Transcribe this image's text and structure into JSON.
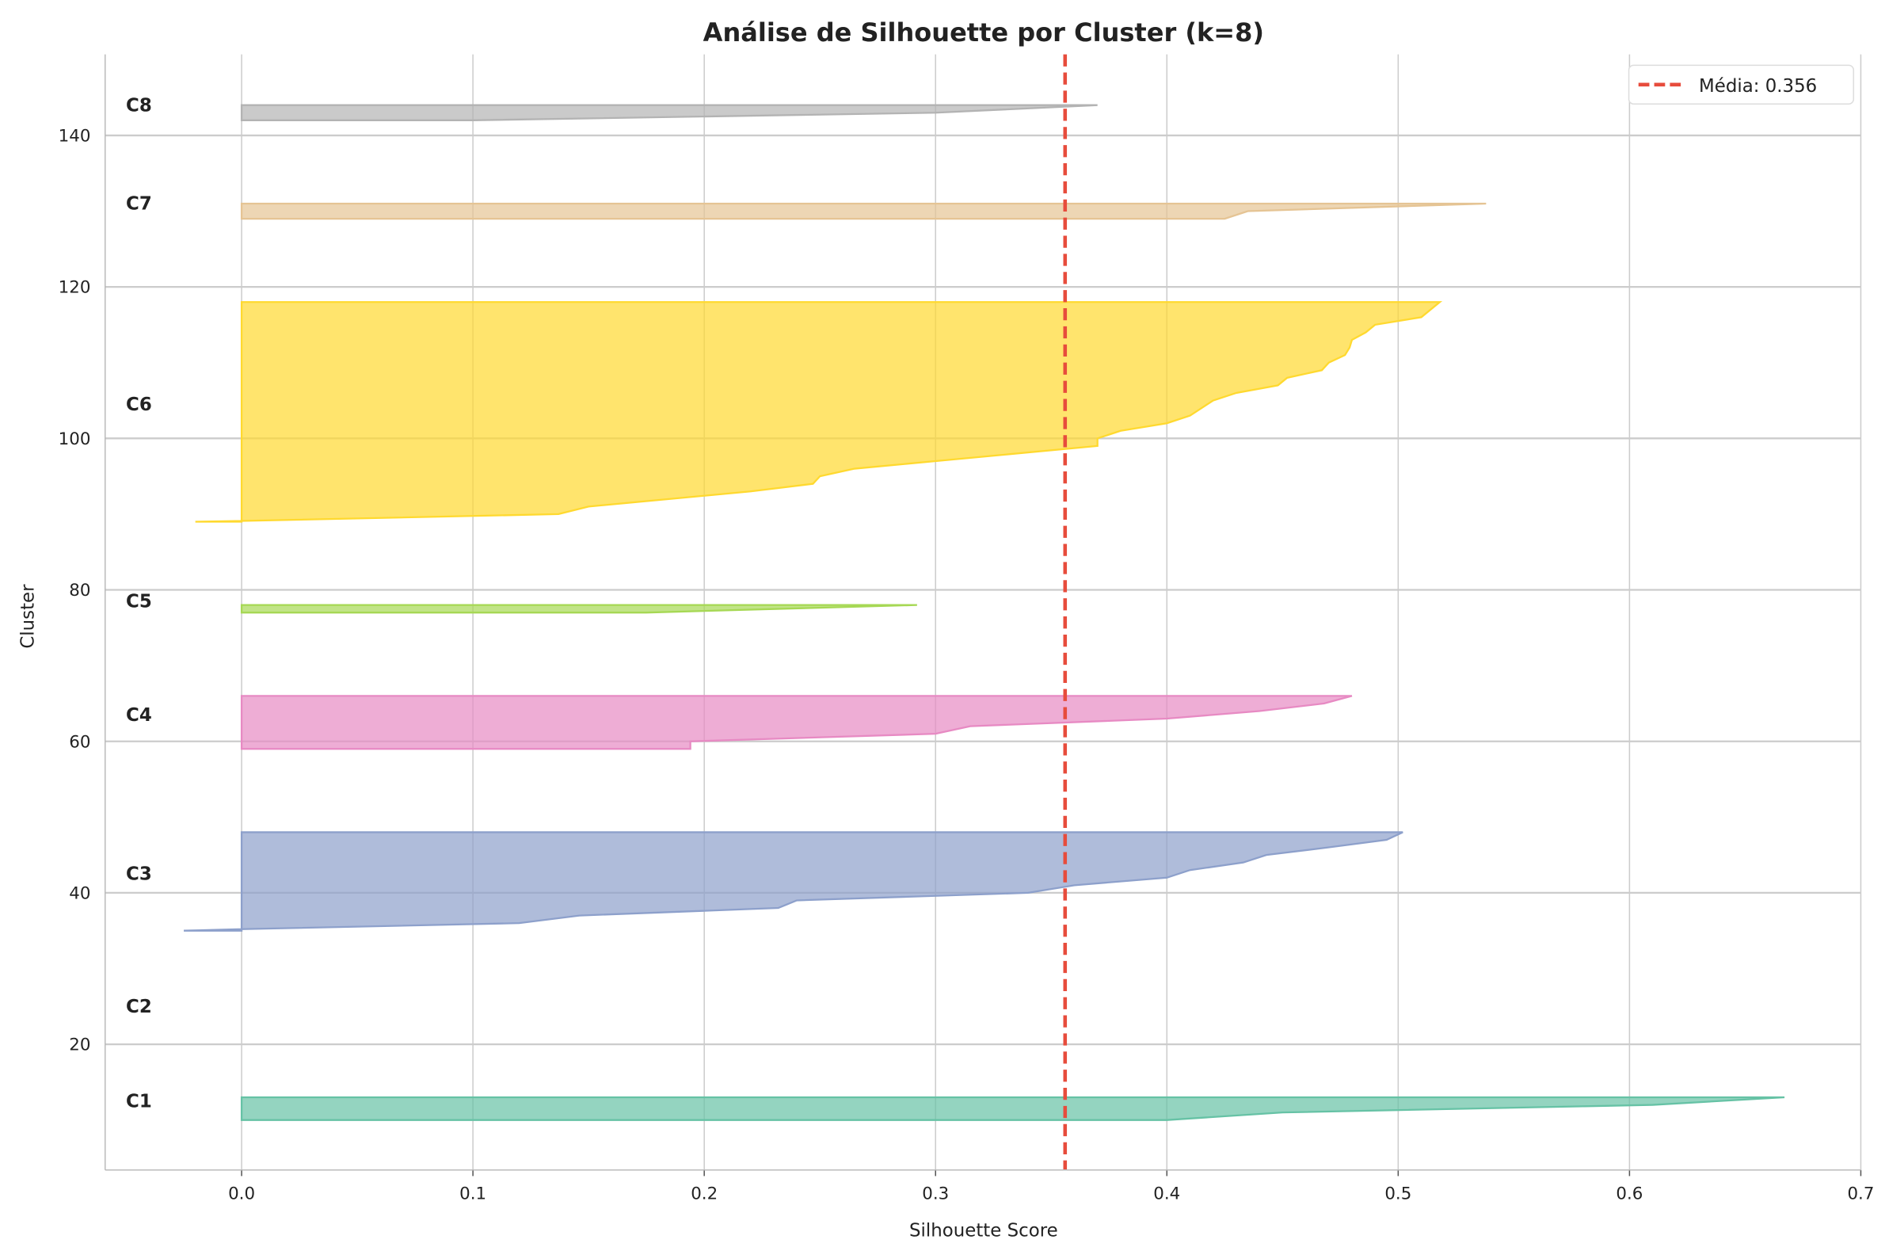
{
  "chart_data": {
    "type": "area",
    "title": "Análise de Silhouette por Cluster (k=8)",
    "xlabel": "Silhouette Score",
    "ylabel": "Cluster",
    "xlim": [
      -0.059,
      0.7
    ],
    "ylim": [
      3.4,
      150.7
    ],
    "xticks": [
      "0.0",
      "0.1",
      "0.2",
      "0.3",
      "0.4",
      "0.5",
      "0.6",
      "0.7"
    ],
    "yticks": [
      "20",
      "40",
      "60",
      "80",
      "100",
      "120",
      "140"
    ],
    "grid": true,
    "legend": {
      "position": "top-right",
      "label": "Média: 0.356"
    },
    "mean": 0.356,
    "mean_color": "#e74c3c",
    "clusters": [
      {
        "name": "C1",
        "label_y": 12.5,
        "color": "#66c2a5",
        "points": [
          [
            0.4,
            10
          ],
          [
            0.45,
            11
          ],
          [
            0.61,
            12
          ],
          [
            0.667,
            13
          ]
        ]
      },
      {
        "name": "C2",
        "label_y": 25,
        "color": "#fc8d62",
        "points": []
      },
      {
        "name": "C3",
        "label_y": 42.5,
        "color": "#8da0cb",
        "points": [
          [
            -0.025,
            35
          ],
          [
            0,
            35.2
          ],
          [
            0.12,
            36
          ],
          [
            0.146,
            37
          ],
          [
            0.232,
            38
          ],
          [
            0.24,
            39
          ],
          [
            0.34,
            40
          ],
          [
            0.36,
            41
          ],
          [
            0.4,
            42
          ],
          [
            0.41,
            43
          ],
          [
            0.433,
            44
          ],
          [
            0.443,
            45
          ],
          [
            0.47,
            46
          ],
          [
            0.495,
            47
          ],
          [
            0.502,
            48
          ]
        ]
      },
      {
        "name": "C4",
        "label_y": 63.5,
        "color": "#e78ac3",
        "points": [
          [
            0.194,
            59
          ],
          [
            0.194,
            60
          ],
          [
            0.3,
            61
          ],
          [
            0.315,
            62
          ],
          [
            0.4,
            63
          ],
          [
            0.44,
            64
          ],
          [
            0.468,
            65
          ],
          [
            0.48,
            66
          ]
        ]
      },
      {
        "name": "C5",
        "label_y": 78.5,
        "color": "#a6d854",
        "points": [
          [
            0.175,
            77
          ],
          [
            0.292,
            78
          ]
        ]
      },
      {
        "name": "C6",
        "label_y": 104.5,
        "color": "#ffd92f",
        "points": [
          [
            -0.02,
            89
          ],
          [
            0,
            89.1
          ],
          [
            0.137,
            90
          ],
          [
            0.15,
            91
          ],
          [
            0.22,
            93
          ],
          [
            0.247,
            94
          ],
          [
            0.25,
            95
          ],
          [
            0.265,
            96
          ],
          [
            0.3,
            97
          ],
          [
            0.37,
            99
          ],
          [
            0.37,
            100
          ],
          [
            0.38,
            101
          ],
          [
            0.4,
            102
          ],
          [
            0.41,
            103
          ],
          [
            0.42,
            105
          ],
          [
            0.43,
            106
          ],
          [
            0.448,
            107
          ],
          [
            0.452,
            108
          ],
          [
            0.467,
            109
          ],
          [
            0.47,
            110
          ],
          [
            0.477,
            111
          ],
          [
            0.479,
            112
          ],
          [
            0.48,
            113
          ],
          [
            0.486,
            114
          ],
          [
            0.49,
            115
          ],
          [
            0.51,
            116
          ],
          [
            0.518,
            118
          ]
        ]
      },
      {
        "name": "C7",
        "label_y": 131,
        "color": "#e5c494",
        "points": [
          [
            0.425,
            129
          ],
          [
            0.435,
            130
          ],
          [
            0.538,
            131
          ]
        ]
      },
      {
        "name": "C8",
        "label_y": 144,
        "color": "#b3b3b3",
        "points": [
          [
            0.1,
            142
          ],
          [
            0.3,
            143
          ],
          [
            0.37,
            144
          ]
        ]
      }
    ]
  }
}
